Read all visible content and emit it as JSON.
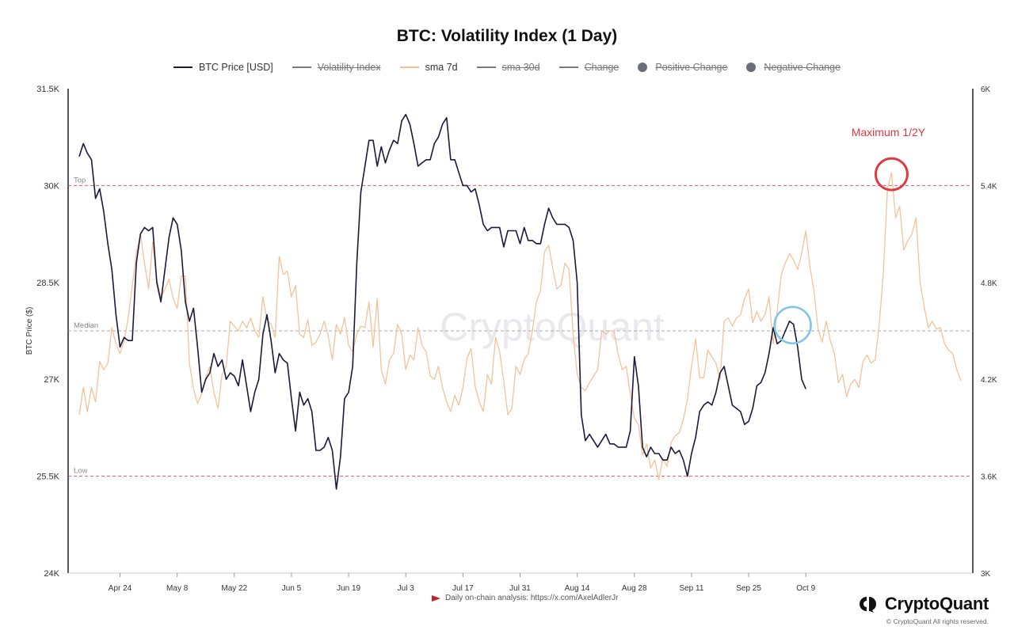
{
  "title": "BTC: Volatility Index (1 Day)",
  "legend": [
    {
      "label": "BTC Price [USD]",
      "color": "#1a1a3a",
      "kind": "line",
      "active": true
    },
    {
      "label": "Volatility Index",
      "color": "#7a7a7a",
      "kind": "line",
      "active": false
    },
    {
      "label": "sma 7d",
      "color": "#f1c39b",
      "kind": "line",
      "active": true
    },
    {
      "label": "sma 30d",
      "color": "#7a7a7a",
      "kind": "line",
      "active": false
    },
    {
      "label": "Change",
      "color": "#7a7a7a",
      "kind": "line",
      "active": false
    },
    {
      "label": "Positive Change",
      "color": "#6b6e78",
      "kind": "dot",
      "active": false
    },
    {
      "label": "Negative Change",
      "color": "#6b6e78",
      "kind": "dot",
      "active": false
    }
  ],
  "footnote": "Daily on-chain analysis: https://x.com/AxelAdlerJr",
  "brand": "CryptoQuant",
  "copyright": "© CryptoQuant All rights reserved.",
  "watermark": "CryptoQuant",
  "chart_data": {
    "type": "line",
    "title": "BTC: Volatility Index (1 Day)",
    "ylabel": "BTC Price ($)",
    "ylim": [
      24000,
      31500
    ],
    "y2lim": [
      3000,
      6000
    ],
    "y_ticks": [
      "24K",
      "25.5K",
      "27K",
      "28.5K",
      "30K",
      "31.5K"
    ],
    "y2_ticks": [
      "3K",
      "3.6K",
      "4.2K",
      "4.8K",
      "5.4K",
      "6K"
    ],
    "x_ticks": [
      "Apr 24",
      "May 8",
      "May 22",
      "Jun 5",
      "Jun 19",
      "Jul 3",
      "Jul 17",
      "Jul 31",
      "Aug 14",
      "Aug 28",
      "Sep 11",
      "Sep 25",
      "Oct 9"
    ],
    "x_tick_index": [
      10,
      24,
      38,
      52,
      66,
      80,
      94,
      108,
      122,
      136,
      150,
      164,
      178
    ],
    "reference_lines": [
      {
        "label": "Top",
        "y2": 5400,
        "color": "#e05a66"
      },
      {
        "label": "Median",
        "y2": 4500,
        "color": "#aaaaaa"
      },
      {
        "label": "Low",
        "y2": 3600,
        "color": "#e05a66"
      }
    ],
    "annotation": {
      "text": "Maximum 1/2Y",
      "color": "#e0393e"
    },
    "series": [
      {
        "name": "BTC Price [USD]",
        "axis": "left",
        "color": "#1a1a3a",
        "values": [
          30450,
          30650,
          30500,
          30400,
          29800,
          29950,
          29600,
          29100,
          28700,
          28000,
          27500,
          27650,
          27600,
          27600,
          28800,
          29250,
          29350,
          29300,
          29350,
          28500,
          28200,
          28700,
          29200,
          29500,
          29400,
          29000,
          28200,
          27900,
          28100,
          27500,
          26800,
          27000,
          27100,
          27400,
          27200,
          27300,
          27000,
          27100,
          27050,
          26900,
          27300,
          26900,
          26500,
          26800,
          27000,
          27700,
          28000,
          27600,
          27100,
          27400,
          27300,
          27250,
          26700,
          26200,
          26800,
          26600,
          26700,
          26500,
          25900,
          25900,
          25950,
          26100,
          25900,
          25300,
          25800,
          26700,
          26800,
          27200,
          28800,
          29900,
          30300,
          30700,
          30700,
          30300,
          30600,
          30350,
          30550,
          30700,
          30650,
          31000,
          31100,
          30950,
          30650,
          30300,
          30350,
          30400,
          30400,
          30650,
          30750,
          30950,
          31050,
          30400,
          30400,
          30200,
          30000,
          30000,
          29900,
          29950,
          29700,
          29400,
          29300,
          29350,
          29350,
          29350,
          29050,
          29300,
          29300,
          29300,
          29100,
          29350,
          29150,
          29150,
          29100,
          29100,
          29400,
          29650,
          29500,
          29400,
          29400,
          29400,
          29350,
          29150,
          28500,
          26450,
          26050,
          26150,
          26050,
          25950,
          26050,
          26150,
          26000,
          26000,
          25950,
          25950,
          25950,
          26200,
          27350,
          26900,
          25950,
          25800,
          25950,
          25850,
          25850,
          25750,
          25750,
          25950,
          25850,
          25900,
          25750,
          25500,
          25850,
          26100,
          26500,
          26600,
          26650,
          26600,
          26800,
          27100,
          27200,
          26900,
          26600,
          26550,
          26500,
          26300,
          26350,
          26550,
          26900,
          26950,
          27100,
          27400,
          27800,
          27550,
          27600,
          27750,
          27900,
          27850,
          27500,
          27000,
          26850
        ],
        "x_start_index": 0
      },
      {
        "name": "sma 7d",
        "axis": "right",
        "color": "#f1c39b",
        "values": [
          3980,
          4150,
          4000,
          4150,
          4060,
          4310,
          4260,
          4300,
          4520,
          4420,
          4360,
          4440,
          4580,
          4780,
          4980,
          5100,
          4920,
          4760,
          5050,
          4820,
          4700,
          4760,
          4820,
          4700,
          4640,
          4840,
          4840,
          4300,
          4140,
          4050,
          4110,
          4210,
          4280,
          4120,
          4020,
          4230,
          4280,
          4560,
          4530,
          4500,
          4560,
          4520,
          4580,
          4500,
          4460,
          4710,
          4570,
          4540,
          4460,
          4960,
          4850,
          4870,
          4710,
          4780,
          4480,
          4460,
          4570,
          4410,
          4430,
          4480,
          4560,
          4470,
          4320,
          4540,
          4480,
          4580,
          4410,
          4370,
          4480,
          4530,
          4520,
          4680,
          4400,
          4700,
          4260,
          4170,
          4320,
          4360,
          4540,
          4480,
          4260,
          4350,
          4320,
          4520,
          4410,
          4370,
          4220,
          4200,
          4280,
          4150,
          4060,
          4000,
          4100,
          4040,
          4150,
          4330,
          4390,
          4160,
          4060,
          4000,
          4230,
          4170,
          4460,
          4370,
          4190,
          3980,
          4020,
          4280,
          4230,
          4320,
          4360,
          4500,
          4680,
          4750,
          4990,
          5030,
          4890,
          4760,
          4780,
          4920,
          4880,
          4480,
          4230,
          4150,
          4130,
          4180,
          4220,
          4260,
          4500,
          4480,
          4500,
          4500,
          4360,
          4260,
          4280,
          4110,
          3960,
          3920,
          3730,
          3800,
          3650,
          3700,
          3580,
          3710,
          3660,
          3810,
          3850,
          3870,
          3950,
          4080,
          4280,
          4450,
          4210,
          4210,
          4380,
          4340,
          4300,
          4200,
          4560,
          4580,
          4530,
          4580,
          4600,
          4700,
          4760,
          4550,
          4620,
          4560,
          4600,
          4710,
          4420,
          4620,
          4850,
          4920,
          4980,
          4940,
          4880,
          4980,
          5120,
          4900,
          4750,
          4510,
          4430,
          4560,
          4440,
          4360,
          4180,
          4230,
          4090,
          4170,
          4200,
          4150,
          4310,
          4350,
          4300,
          4320,
          4540,
          4860,
          5380,
          5480,
          5200,
          5270,
          5000,
          5060,
          5100,
          5200,
          4800,
          4650,
          4520,
          4560,
          4510,
          4520,
          4420,
          4380,
          4360,
          4260,
          4190
        ],
        "x_start_index": 0
      }
    ]
  }
}
